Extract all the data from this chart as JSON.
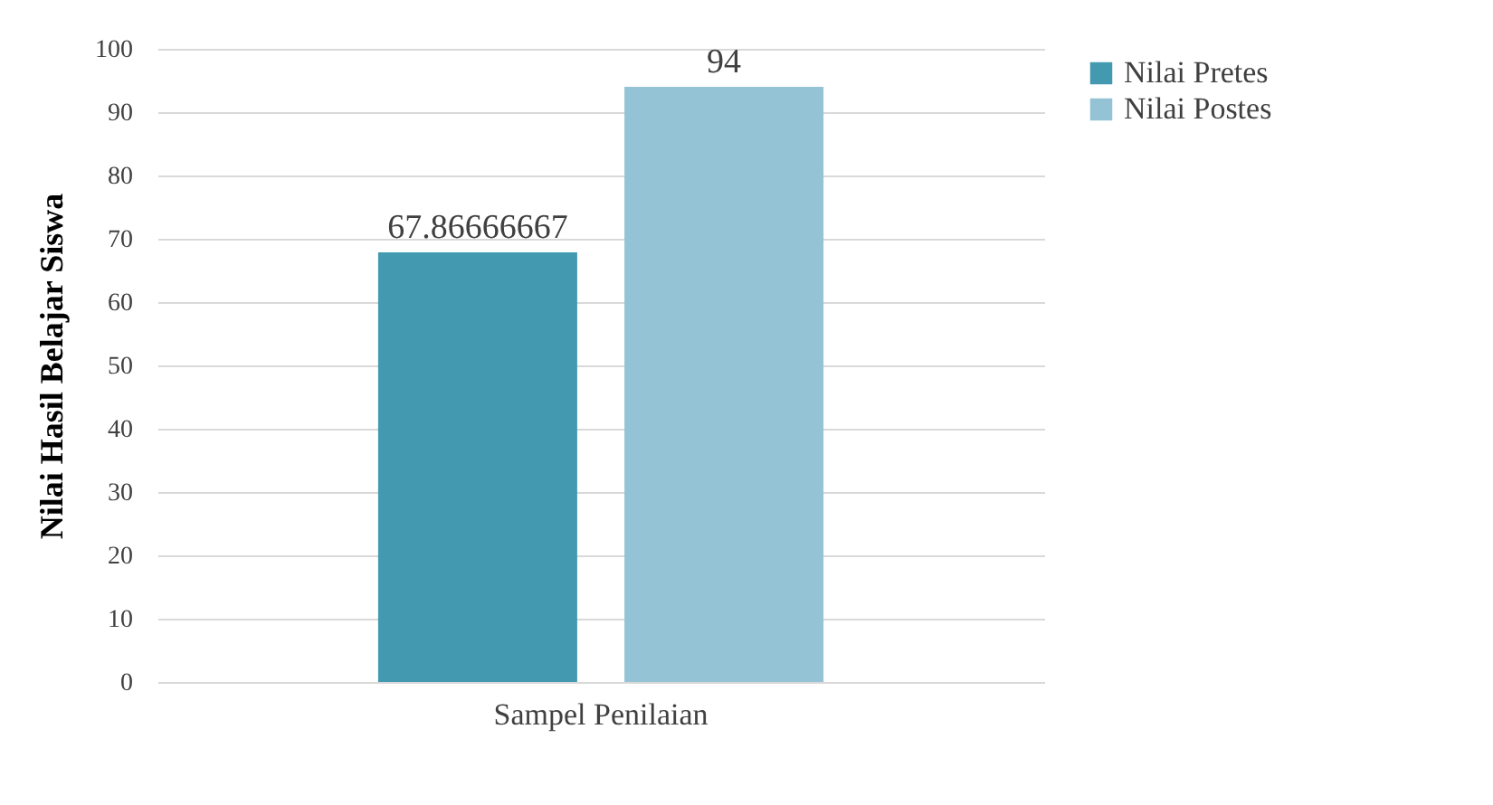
{
  "chart_data": {
    "type": "bar",
    "categories": [
      "Sampel Penilaian"
    ],
    "ylabel": "Nilai Hasil Belajar Siswa",
    "series": [
      {
        "name": "Nilai Pretes",
        "color": "#4299b0",
        "values": [
          67.86666667
        ]
      },
      {
        "name": "Nilai Postes",
        "color": "#93c3d4",
        "values": [
          94
        ]
      }
    ],
    "ylim": [
      0,
      100
    ],
    "yticks": [
      0,
      10,
      20,
      30,
      40,
      50,
      60,
      70,
      80,
      90,
      100
    ],
    "grid": "y",
    "legend": "right",
    "data_labels": true
  }
}
